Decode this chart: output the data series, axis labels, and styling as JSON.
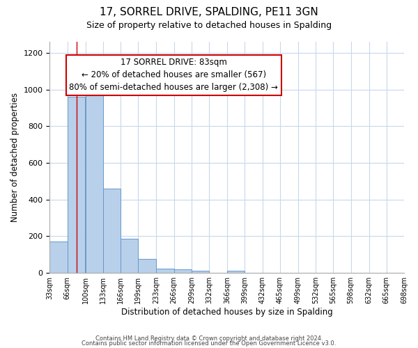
{
  "title": "17, SORREL DRIVE, SPALDING, PE11 3GN",
  "subtitle": "Size of property relative to detached houses in Spalding",
  "xlabel": "Distribution of detached houses by size in Spalding",
  "ylabel": "Number of detached properties",
  "bar_color": "#b8d0ea",
  "bar_edge_color": "#6699cc",
  "bin_edges": [
    33,
    66,
    100,
    133,
    166,
    199,
    233,
    266,
    299,
    332,
    366,
    399,
    432,
    465,
    499,
    532,
    565,
    598,
    632,
    665,
    698
  ],
  "bar_heights": [
    170,
    960,
    990,
    460,
    185,
    75,
    25,
    20,
    13,
    0,
    13,
    0,
    0,
    0,
    0,
    0,
    0,
    0,
    0,
    0
  ],
  "tick_labels": [
    "33sqm",
    "66sqm",
    "100sqm",
    "133sqm",
    "166sqm",
    "199sqm",
    "233sqm",
    "266sqm",
    "299sqm",
    "332sqm",
    "366sqm",
    "399sqm",
    "432sqm",
    "465sqm",
    "499sqm",
    "532sqm",
    "565sqm",
    "598sqm",
    "632sqm",
    "665sqm",
    "698sqm"
  ],
  "ylim": [
    0,
    1260
  ],
  "yticks": [
    0,
    200,
    400,
    600,
    800,
    1000,
    1200
  ],
  "property_line_x": 83,
  "property_line_color": "#cc0000",
  "annotation_line1": "17 SORREL DRIVE: 83sqm",
  "annotation_line2": "← 20% of detached houses are smaller (567)",
  "annotation_line3": "80% of semi-detached houses are larger (2,308) →",
  "footer_line1": "Contains HM Land Registry data © Crown copyright and database right 2024.",
  "footer_line2": "Contains public sector information licensed under the Open Government Licence v3.0.",
  "background_color": "#ffffff",
  "grid_color": "#c8d8ec"
}
